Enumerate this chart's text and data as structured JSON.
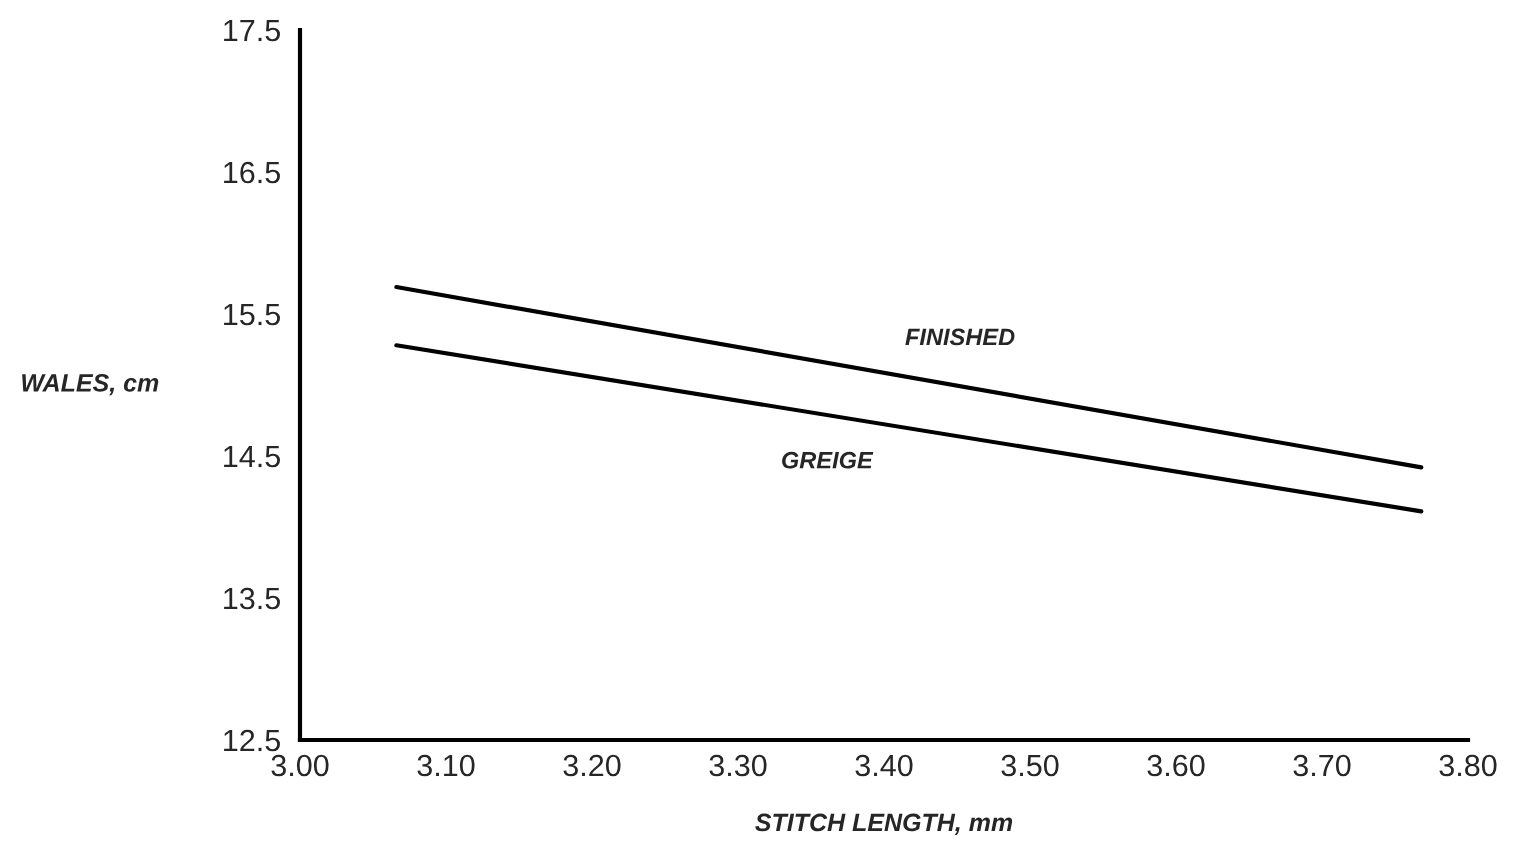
{
  "chart_data": {
    "type": "line",
    "xlabel": "STITCH LENGTH, mm",
    "ylabel": "WALES, cm",
    "x": [
      3.066,
      3.768
    ],
    "series": [
      {
        "name": "FINISHED",
        "color": "#000000",
        "values": [
          15.69,
          14.42
        ]
      },
      {
        "name": "GREIGE",
        "color": "#000000",
        "values": [
          15.28,
          14.11
        ]
      }
    ],
    "xlim": [
      3.0,
      3.8
    ],
    "ylim": [
      12.5,
      17.5
    ],
    "xticks": [
      {
        "value": 3.0,
        "label": "3.00"
      },
      {
        "value": 3.1,
        "label": "3.10"
      },
      {
        "value": 3.2,
        "label": "3.20"
      },
      {
        "value": 3.3,
        "label": "3.30"
      },
      {
        "value": 3.4,
        "label": "3.40"
      },
      {
        "value": 3.5,
        "label": "3.50"
      },
      {
        "value": 3.6,
        "label": "3.60"
      },
      {
        "value": 3.7,
        "label": "3.70"
      },
      {
        "value": 3.8,
        "label": "3.80"
      }
    ],
    "yticks": [
      12.5,
      13.5,
      14.5,
      15.5,
      16.5,
      17.5
    ],
    "grid": false,
    "legend": false,
    "marker": "none",
    "line_style": "solid"
  }
}
